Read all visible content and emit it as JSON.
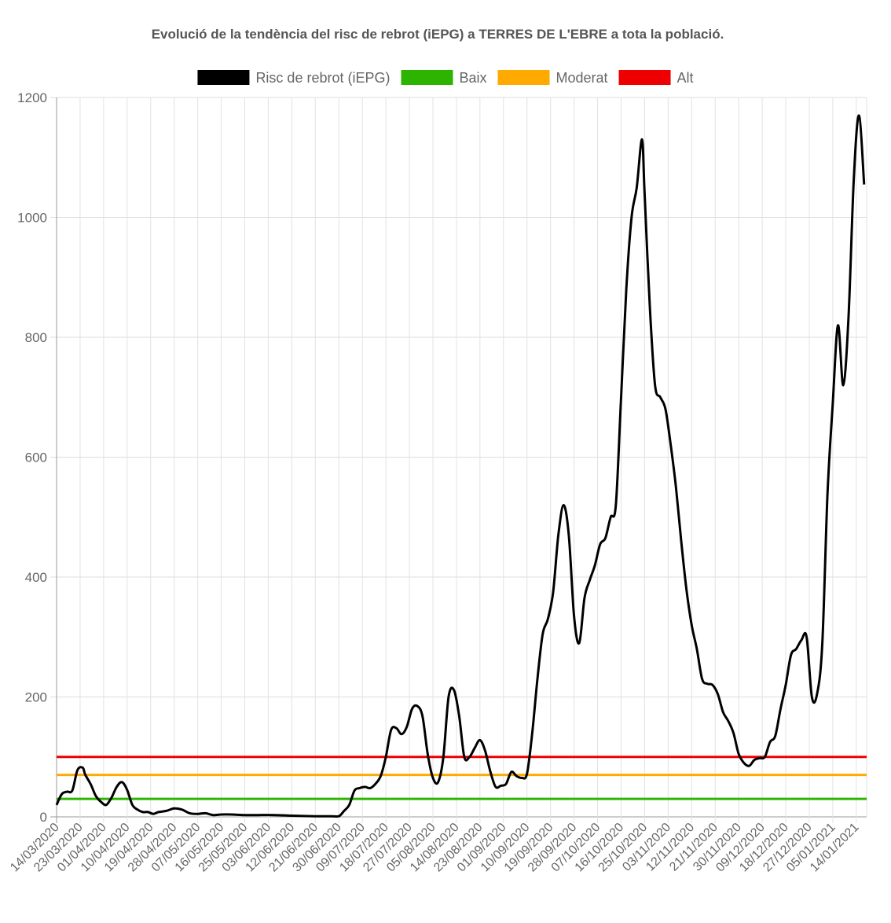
{
  "chart_data": {
    "type": "line",
    "title": "Evolució de la tendència del risc de rebrot (iEPG) a TERRES DE L'EBRE a tota la població.",
    "xlabel": "",
    "ylabel": "",
    "ylim": [
      0,
      1200
    ],
    "yticks": [
      "0",
      "200",
      "400",
      "600",
      "800",
      "1000",
      "1200"
    ],
    "xtick_labels": [
      "14/03/2020",
      "23/03/2020",
      "01/04/2020",
      "10/04/2020",
      "19/04/2020",
      "28/04/2020",
      "07/05/2020",
      "16/05/2020",
      "25/05/2020",
      "03/06/2020",
      "12/06/2020",
      "21/06/2020",
      "30/06/2020",
      "09/07/2020",
      "18/07/2020",
      "27/07/2020",
      "05/08/2020",
      "14/08/2020",
      "23/08/2020",
      "01/09/2020",
      "10/09/2020",
      "19/09/2020",
      "28/09/2020",
      "07/10/2020",
      "16/10/2020",
      "25/10/2020",
      "03/11/2020",
      "12/11/2020",
      "21/11/2020",
      "30/11/2020",
      "09/12/2020",
      "18/12/2020",
      "27/12/2020",
      "05/01/2021",
      "14/01/2021"
    ],
    "grid": true,
    "legend_position": "top",
    "series": [
      {
        "name": "Risc de rebrot (iEPG)",
        "color": "#000000",
        "x": [
          "14/03/2020",
          "16/03/2020",
          "18/03/2020",
          "20/03/2020",
          "22/03/2020",
          "24/03/2020",
          "25/03/2020",
          "27/03/2020",
          "29/03/2020",
          "31/03/2020",
          "02/04/2020",
          "04/04/2020",
          "06/04/2020",
          "08/04/2020",
          "10/04/2020",
          "12/04/2020",
          "14/04/2020",
          "16/04/2020",
          "18/04/2020",
          "20/04/2020",
          "22/04/2020",
          "25/04/2020",
          "28/04/2020",
          "01/05/2020",
          "04/05/2020",
          "07/05/2020",
          "10/05/2020",
          "13/05/2020",
          "16/05/2020",
          "20/05/2020",
          "25/05/2020",
          "30/05/2020",
          "05/06/2020",
          "12/06/2020",
          "21/06/2020",
          "27/06/2020",
          "30/06/2020",
          "02/07/2020",
          "04/07/2020",
          "06/07/2020",
          "08/07/2020",
          "10/07/2020",
          "12/07/2020",
          "14/07/2020",
          "16/07/2020",
          "18/07/2020",
          "20/07/2020",
          "22/07/2020",
          "24/07/2020",
          "26/07/2020",
          "28/07/2020",
          "30/07/2020",
          "01/08/2020",
          "03/08/2020",
          "05/08/2020",
          "07/08/2020",
          "09/08/2020",
          "11/08/2020",
          "13/08/2020",
          "15/08/2020",
          "17/08/2020",
          "19/08/2020",
          "21/08/2020",
          "23/08/2020",
          "25/08/2020",
          "27/08/2020",
          "29/08/2020",
          "31/08/2020",
          "02/09/2020",
          "04/09/2020",
          "06/09/2020",
          "08/09/2020",
          "10/09/2020",
          "12/09/2020",
          "14/09/2020",
          "16/09/2020",
          "18/09/2020",
          "20/09/2020",
          "22/09/2020",
          "24/09/2020",
          "26/09/2020",
          "28/09/2020",
          "30/09/2020",
          "02/10/2020",
          "04/10/2020",
          "06/10/2020",
          "08/10/2020",
          "10/10/2020",
          "12/10/2020",
          "14/10/2020",
          "16/10/2020",
          "18/10/2020",
          "20/10/2020",
          "22/10/2020",
          "24/10/2020",
          "25/10/2020",
          "27/10/2020",
          "29/10/2020",
          "31/10/2020",
          "02/11/2020",
          "04/11/2020",
          "06/11/2020",
          "08/11/2020",
          "10/11/2020",
          "12/11/2020",
          "14/11/2020",
          "16/11/2020",
          "18/11/2020",
          "20/11/2020",
          "22/11/2020",
          "24/11/2020",
          "26/11/2020",
          "28/11/2020",
          "30/11/2020",
          "02/12/2020",
          "04/12/2020",
          "06/12/2020",
          "08/12/2020",
          "10/12/2020",
          "12/12/2020",
          "14/12/2020",
          "16/12/2020",
          "18/12/2020",
          "20/12/2020",
          "22/12/2020",
          "24/12/2020",
          "26/12/2020",
          "28/12/2020",
          "30/12/2020",
          "01/01/2021",
          "03/01/2021",
          "05/01/2021",
          "07/01/2021",
          "09/01/2021",
          "11/01/2021",
          "13/01/2021",
          "15/01/2021",
          "17/01/2021"
        ],
        "values": [
          20,
          38,
          42,
          44,
          78,
          82,
          70,
          55,
          35,
          25,
          20,
          32,
          50,
          58,
          45,
          20,
          12,
          8,
          8,
          5,
          8,
          10,
          14,
          12,
          6,
          5,
          6,
          3,
          4,
          4,
          3,
          3,
          3,
          2,
          1,
          1,
          1,
          10,
          20,
          44,
          48,
          50,
          48,
          55,
          68,
          100,
          145,
          148,
          138,
          150,
          180,
          185,
          168,
          105,
          65,
          58,
          100,
          200,
          212,
          170,
          100,
          100,
          115,
          128,
          110,
          75,
          50,
          52,
          55,
          75,
          68,
          65,
          72,
          140,
          230,
          305,
          330,
          375,
          470,
          520,
          470,
          335,
          290,
          365,
          395,
          420,
          455,
          465,
          500,
          520,
          700,
          880,
          1000,
          1050,
          1130,
          1040,
          850,
          720,
          700,
          680,
          620,
          550,
          460,
          380,
          320,
          280,
          230,
          222,
          220,
          205,
          175,
          160,
          140,
          105,
          90,
          85,
          95,
          98,
          100,
          125,
          135,
          180,
          220,
          270,
          280,
          295,
          300,
          200,
          205,
          290,
          540,
          690,
          820,
          720,
          830,
          1060,
          1170,
          1055
        ],
        "line": true
      },
      {
        "name": "Baix",
        "color": "#2db400",
        "values": [
          30
        ],
        "type": "threshold"
      },
      {
        "name": "Moderat",
        "color": "#ffaa00",
        "values": [
          70
        ],
        "type": "threshold"
      },
      {
        "name": "Alt",
        "color": "#ee0000",
        "values": [
          100
        ],
        "type": "threshold"
      }
    ]
  }
}
